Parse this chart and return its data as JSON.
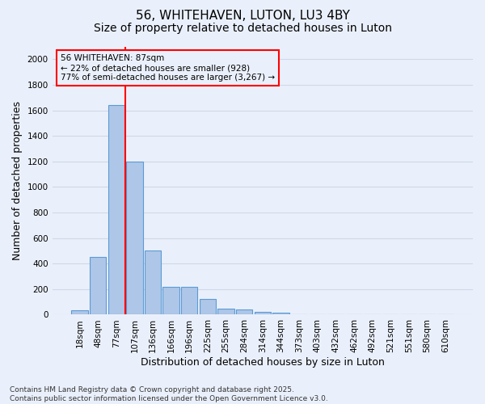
{
  "title1": "56, WHITEHAVEN, LUTON, LU3 4BY",
  "title2": "Size of property relative to detached houses in Luton",
  "xlabel": "Distribution of detached houses by size in Luton",
  "ylabel": "Number of detached properties",
  "categories": [
    "18sqm",
    "48sqm",
    "77sqm",
    "107sqm",
    "136sqm",
    "166sqm",
    "196sqm",
    "225sqm",
    "255sqm",
    "284sqm",
    "314sqm",
    "344sqm",
    "373sqm",
    "403sqm",
    "432sqm",
    "462sqm",
    "492sqm",
    "521sqm",
    "551sqm",
    "580sqm",
    "610sqm"
  ],
  "values": [
    35,
    455,
    1640,
    1200,
    500,
    220,
    220,
    125,
    50,
    40,
    25,
    18,
    0,
    0,
    0,
    0,
    0,
    0,
    0,
    0,
    0
  ],
  "bar_color": "#aec6e8",
  "bar_edge_color": "#5b9bd5",
  "grid_color": "#d0d8e8",
  "background_color": "#eaf0fb",
  "vline_color": "red",
  "vline_x": 2.5,
  "annotation_line1": "56 WHITEHAVEN: 87sqm",
  "annotation_line2": "← 22% of detached houses are smaller (928)",
  "annotation_line3": "77% of semi-detached houses are larger (3,267) →",
  "annotation_box_color": "red",
  "ylim": [
    0,
    2100
  ],
  "yticks": [
    0,
    200,
    400,
    600,
    800,
    1000,
    1200,
    1400,
    1600,
    1800,
    2000
  ],
  "footer1": "Contains HM Land Registry data © Crown copyright and database right 2025.",
  "footer2": "Contains public sector information licensed under the Open Government Licence v3.0.",
  "title1_fontsize": 11,
  "title2_fontsize": 10,
  "axis_label_fontsize": 9,
  "tick_fontsize": 7.5,
  "footer_fontsize": 6.5,
  "annot_fontsize": 7.5
}
